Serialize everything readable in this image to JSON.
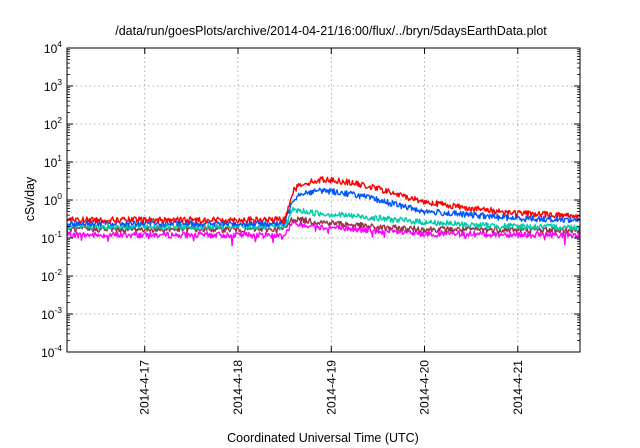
{
  "chart_data": {
    "type": "line",
    "title": "/data/run/goesPlots/archive/2014-04-21/16:00/flux/../bryn/5daysEarthData.plot",
    "xlabel": "Coordinated Universal Time (UTC)",
    "ylabel": "cSv/day",
    "y_scale": "log",
    "ylim": [
      0.0001,
      10000
    ],
    "y_ticks": [
      {
        "base": "10",
        "exp": "-4",
        "value": 0.0001
      },
      {
        "base": "10",
        "exp": "-3",
        "value": 0.001
      },
      {
        "base": "10",
        "exp": "-2",
        "value": 0.01
      },
      {
        "base": "10",
        "exp": "-1",
        "value": 0.1
      },
      {
        "base": "10",
        "exp": "0",
        "value": 1
      },
      {
        "base": "10",
        "exp": "1",
        "value": 10
      },
      {
        "base": "10",
        "exp": "2",
        "value": 100
      },
      {
        "base": "10",
        "exp": "3",
        "value": 1000
      },
      {
        "base": "10",
        "exp": "4",
        "value": 10000
      }
    ],
    "x_range": [
      "2014-04-16 04:00",
      "2014-04-21 16:00"
    ],
    "x_ticks": [
      {
        "label": "2014-4-17",
        "time": "2014-04-17 00:00"
      },
      {
        "label": "2014-4-18",
        "time": "2014-04-18 00:00"
      },
      {
        "label": "2014-4-19",
        "time": "2014-04-19 00:00"
      },
      {
        "label": "2014-4-20",
        "time": "2014-04-20 00:00"
      },
      {
        "label": "2014-4-21",
        "time": "2014-04-21 00:00"
      }
    ],
    "grid": true,
    "series": [
      {
        "color": "#ff0000",
        "points": [
          [
            "2014-04-16 04:00",
            0.3
          ],
          [
            "2014-04-17 00:00",
            0.3
          ],
          [
            "2014-04-18 00:00",
            0.3
          ],
          [
            "2014-04-18 12:00",
            0.3
          ],
          [
            "2014-04-18 14:00",
            1.6
          ],
          [
            "2014-04-18 16:00",
            2.6
          ],
          [
            "2014-04-18 22:00",
            3.5
          ],
          [
            "2014-04-19 04:00",
            3.0
          ],
          [
            "2014-04-19 12:00",
            2.0
          ],
          [
            "2014-04-19 18:00",
            1.3
          ],
          [
            "2014-04-20 00:00",
            0.9
          ],
          [
            "2014-04-20 12:00",
            0.6
          ],
          [
            "2014-04-21 00:00",
            0.45
          ],
          [
            "2014-04-21 16:00",
            0.38
          ]
        ]
      },
      {
        "color": "#0055ff",
        "points": [
          [
            "2014-04-16 04:00",
            0.24
          ],
          [
            "2014-04-17 00:00",
            0.24
          ],
          [
            "2014-04-18 00:00",
            0.24
          ],
          [
            "2014-04-18 12:00",
            0.24
          ],
          [
            "2014-04-18 14:00",
            1.0
          ],
          [
            "2014-04-18 16:00",
            1.5
          ],
          [
            "2014-04-18 22:00",
            1.8
          ],
          [
            "2014-04-19 06:00",
            1.4
          ],
          [
            "2014-04-19 12:00",
            1.0
          ],
          [
            "2014-04-19 18:00",
            0.7
          ],
          [
            "2014-04-20 00:00",
            0.5
          ],
          [
            "2014-04-20 12:00",
            0.4
          ],
          [
            "2014-04-21 00:00",
            0.33
          ],
          [
            "2014-04-21 16:00",
            0.3
          ]
        ]
      },
      {
        "color": "#00ccaa",
        "points": [
          [
            "2014-04-16 04:00",
            0.2
          ],
          [
            "2014-04-17 00:00",
            0.2
          ],
          [
            "2014-04-18 00:00",
            0.2
          ],
          [
            "2014-04-18 12:00",
            0.2
          ],
          [
            "2014-04-18 14:00",
            0.55
          ],
          [
            "2014-04-18 20:00",
            0.45
          ],
          [
            "2014-04-19 06:00",
            0.38
          ],
          [
            "2014-04-19 12:00",
            0.33
          ],
          [
            "2014-04-20 00:00",
            0.26
          ],
          [
            "2014-04-20 12:00",
            0.22
          ],
          [
            "2014-04-21 00:00",
            0.2
          ],
          [
            "2014-04-21 16:00",
            0.19
          ]
        ]
      },
      {
        "color": "#993344",
        "points": [
          [
            "2014-04-16 04:00",
            0.17
          ],
          [
            "2014-04-17 00:00",
            0.17
          ],
          [
            "2014-04-18 00:00",
            0.17
          ],
          [
            "2014-04-18 12:00",
            0.17
          ],
          [
            "2014-04-18 14:00",
            0.32
          ],
          [
            "2014-04-18 20:00",
            0.27
          ],
          [
            "2014-04-19 06:00",
            0.22
          ],
          [
            "2014-04-19 12:00",
            0.19
          ],
          [
            "2014-04-20 00:00",
            0.17
          ],
          [
            "2014-04-21 16:00",
            0.16
          ]
        ]
      },
      {
        "color": "#ff00ff",
        "points": [
          [
            "2014-04-16 04:00",
            0.12
          ],
          [
            "2014-04-17 00:00",
            0.12
          ],
          [
            "2014-04-18 00:00",
            0.12
          ],
          [
            "2014-04-18 12:00",
            0.12
          ],
          [
            "2014-04-18 14:00",
            0.25
          ],
          [
            "2014-04-18 20:00",
            0.2
          ],
          [
            "2014-04-19 06:00",
            0.17
          ],
          [
            "2014-04-19 12:00",
            0.15
          ],
          [
            "2014-04-20 00:00",
            0.13
          ],
          [
            "2014-04-21 16:00",
            0.12
          ]
        ]
      }
    ]
  }
}
